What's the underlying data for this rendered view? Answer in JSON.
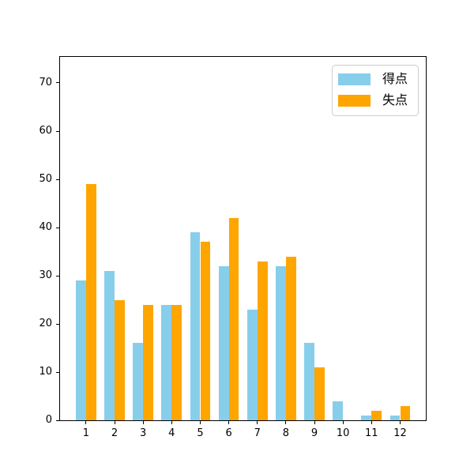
{
  "chart_data": {
    "type": "bar",
    "title": "",
    "xlabel": "",
    "ylabel": "",
    "categories": [
      1,
      2,
      3,
      4,
      5,
      6,
      7,
      8,
      9,
      10,
      11,
      12
    ],
    "series": [
      {
        "name": "得点",
        "color": "#87CEEB",
        "values": [
          29,
          31,
          16,
          24,
          39,
          32,
          23,
          32,
          16,
          4,
          1,
          1
        ]
      },
      {
        "name": "失点",
        "color": "#FFA500",
        "values": [
          49,
          25,
          24,
          24,
          37,
          42,
          33,
          34,
          11,
          0,
          2,
          3
        ]
      }
    ],
    "yticks": [
      0,
      10,
      20,
      30,
      40,
      50,
      60,
      70
    ],
    "ylim": [
      0,
      75.4
    ],
    "xlim": [
      0.09,
      12.9
    ],
    "bar_width": 0.358,
    "grid": false,
    "legend_position": "upper right",
    "background_color": "#ffffff",
    "spine_color": "#000000"
  }
}
